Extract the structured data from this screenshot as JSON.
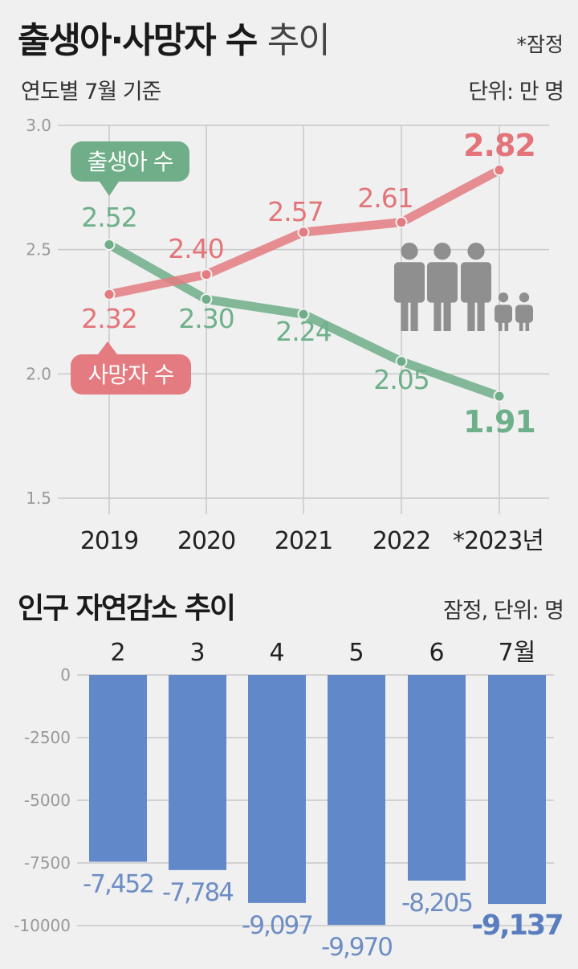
{
  "header": {
    "title_main": "출생아·사망자 수",
    "title_sub": "추이",
    "note": "*잠정",
    "subtitle": "연도별 7월 기준",
    "unit": "단위: 만 명"
  },
  "bar_section": {
    "title": "인구 자연감소 추이",
    "unit": "잠정, 단위: 명"
  },
  "colors": {
    "births": "#6fae88",
    "deaths": "#e37b80",
    "bars": "#6189ca",
    "grid": "#c8c8c8"
  },
  "icons": [
    "family-people-icon"
  ],
  "chart_data": [
    {
      "type": "line",
      "x": [
        "2019",
        "2020",
        "2021",
        "2022",
        "*2023년"
      ],
      "series": [
        {
          "name": "출생아 수",
          "values": [
            2.52,
            2.3,
            2.24,
            2.05,
            1.91
          ],
          "labels": [
            "2.52",
            "2.30",
            "2.24",
            "2.05",
            "1.91"
          ]
        },
        {
          "name": "사망자 수",
          "values": [
            2.32,
            2.4,
            2.57,
            2.61,
            2.82
          ],
          "labels": [
            "2.32",
            "2.40",
            "2.57",
            "2.61",
            "2.82"
          ]
        }
      ],
      "ylim": [
        1.5,
        3.0
      ],
      "yticks": [
        "3.0",
        "2.5",
        "2.0",
        "1.5"
      ],
      "grid": true
    },
    {
      "type": "bar",
      "categories": [
        "2",
        "3",
        "4",
        "5",
        "6",
        "7월"
      ],
      "values": [
        -7452,
        -7784,
        -9097,
        -9970,
        -8205,
        -9137
      ],
      "labels": [
        "-7,452",
        "-7,784",
        "-9,097",
        "-9,970",
        "-8,205",
        "-9,137"
      ],
      "ylim": [
        -10000,
        0
      ],
      "yticks": [
        "0",
        "-2500",
        "-5000",
        "-7500",
        "-10000"
      ],
      "grid": true
    }
  ]
}
